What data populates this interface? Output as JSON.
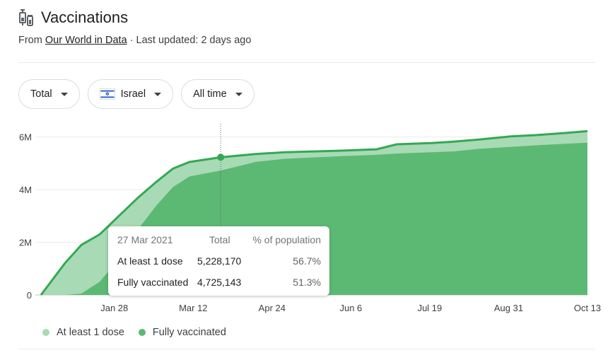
{
  "header": {
    "title": "Vaccinations",
    "source_prefix": "From",
    "source_link": "Our World in Data",
    "source_suffix": "· Last updated: 2 days ago"
  },
  "filters": [
    {
      "label": "Total"
    },
    {
      "label": "Israel"
    },
    {
      "label": "All time"
    }
  ],
  "colors": {
    "at_least_one": "#a8dab5",
    "fully": "#5bb974",
    "line": "#34a853"
  },
  "tooltip": {
    "date": "27 Mar 2021",
    "col_total": "Total",
    "col_pct": "% of population",
    "rows": [
      {
        "label": "At least 1 dose",
        "total": "5,228,170",
        "pct": "56.7%"
      },
      {
        "label": "Fully vaccinated",
        "total": "4,725,143",
        "pct": "51.3%"
      }
    ]
  },
  "legend": [
    {
      "label": "At least 1 dose",
      "color": "#a8dab5"
    },
    {
      "label": "Fully vaccinated",
      "color": "#5bb974"
    }
  ],
  "chart_data": {
    "type": "area",
    "x_dates": [
      "2020-12-19",
      "2021-01-01",
      "2021-01-10",
      "2021-01-20",
      "2021-02-01",
      "2021-02-10",
      "2021-02-20",
      "2021-03-01",
      "2021-03-10",
      "2021-03-27",
      "2021-04-15",
      "2021-05-01",
      "2021-06-01",
      "2021-06-20",
      "2021-07-01",
      "2021-07-20",
      "2021-08-01",
      "2021-08-15",
      "2021-09-01",
      "2021-09-15",
      "2021-10-01",
      "2021-10-13"
    ],
    "series": [
      {
        "name": "At least 1 dose",
        "values": [
          0,
          1.2,
          1.9,
          2.3,
          3.1,
          3.7,
          4.3,
          4.8,
          5.05,
          5.228,
          5.35,
          5.42,
          5.48,
          5.53,
          5.72,
          5.77,
          5.82,
          5.9,
          6.02,
          6.07,
          6.15,
          6.22
        ]
      },
      {
        "name": "Fully vaccinated",
        "values": [
          0,
          0,
          0.05,
          0.5,
          1.5,
          2.5,
          3.4,
          4.1,
          4.5,
          4.725,
          5.05,
          5.17,
          5.27,
          5.32,
          5.37,
          5.42,
          5.45,
          5.55,
          5.62,
          5.68,
          5.74,
          5.78
        ]
      }
    ],
    "x_ticks": [
      {
        "date": "2021-01-28",
        "label": "Jan 28"
      },
      {
        "date": "2021-03-12",
        "label": "Mar 12"
      },
      {
        "date": "2021-04-24",
        "label": "Apr 24"
      },
      {
        "date": "2021-06-06",
        "label": "Jun 6"
      },
      {
        "date": "2021-07-19",
        "label": "Jul 19"
      },
      {
        "date": "2021-08-31",
        "label": "Aug 31"
      },
      {
        "date": "2021-10-13",
        "label": "Oct 13"
      }
    ],
    "y_ticks": [
      {
        "value": 0,
        "label": "0"
      },
      {
        "value": 2,
        "label": "2M"
      },
      {
        "value": 4,
        "label": "4M"
      },
      {
        "value": 6,
        "label": "6M"
      }
    ],
    "ylim": [
      0,
      6.5
    ],
    "highlight_date": "2021-03-27",
    "grid": true
  }
}
